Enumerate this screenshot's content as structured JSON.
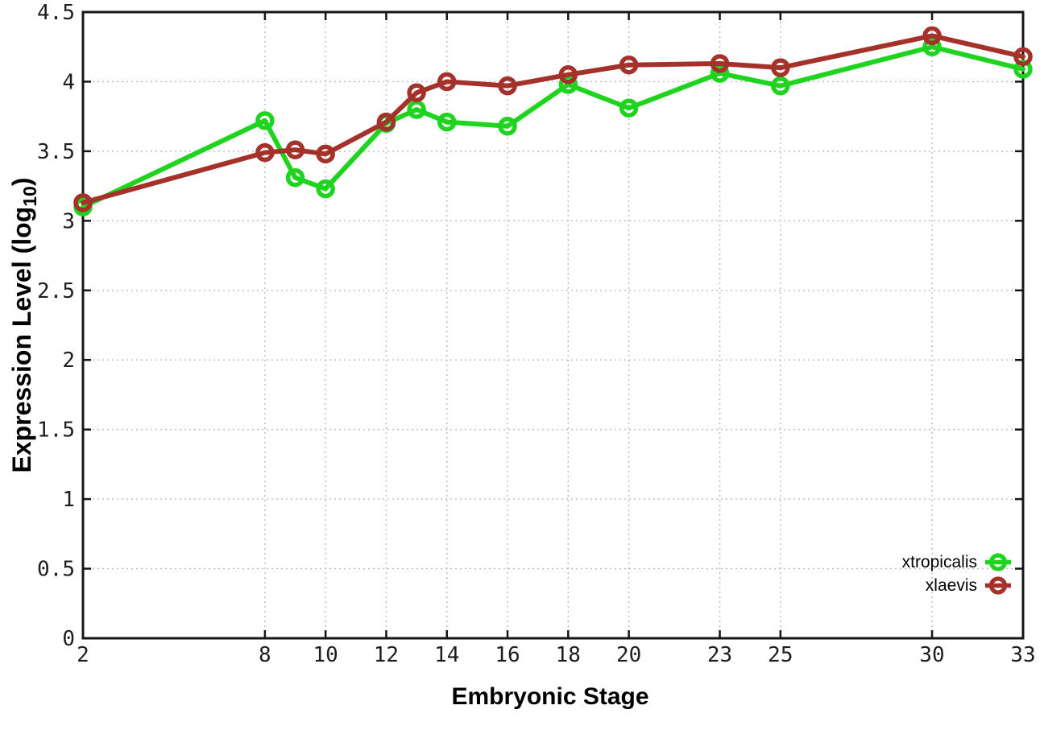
{
  "chart_data": {
    "type": "line",
    "title": "",
    "xlabel": "Embryonic Stage",
    "ylabel": "Expression Level (log10)",
    "ylabel_parts": {
      "main": "Expression Level (log",
      "sub": "10",
      "close": ")"
    },
    "xlim": [
      2,
      33
    ],
    "ylim": [
      0,
      4.5
    ],
    "x_ticks": [
      2,
      8,
      10,
      12,
      14,
      16,
      18,
      20,
      23,
      25,
      30,
      33
    ],
    "x_tick_labels": [
      "2",
      "8",
      "10",
      "12",
      "14",
      "16",
      "18",
      "20",
      "23",
      "25",
      "30",
      "33"
    ],
    "y_ticks": [
      0,
      0.5,
      1,
      1.5,
      2,
      2.5,
      3,
      3.5,
      4,
      4.5
    ],
    "y_tick_labels": [
      "0",
      "0.5",
      "1",
      "1.5",
      "2",
      "2.5",
      "3",
      "3.5",
      "4",
      "4.5"
    ],
    "grid": true,
    "legend_position": "bottom-right",
    "x": [
      2,
      8,
      9,
      10,
      12,
      13,
      14,
      16,
      18,
      20,
      23,
      25,
      30,
      33
    ],
    "series": [
      {
        "name": "xtropicalis",
        "color": "#1fd41f",
        "marker": "open-circle",
        "values": [
          3.1,
          3.72,
          3.31,
          3.23,
          3.7,
          3.8,
          3.71,
          3.68,
          3.98,
          3.81,
          4.06,
          3.97,
          4.25,
          4.09
        ]
      },
      {
        "name": "xlaevis",
        "color": "#a5312b",
        "marker": "open-circle",
        "values": [
          3.13,
          3.49,
          3.51,
          3.48,
          3.71,
          3.92,
          4.0,
          3.97,
          4.05,
          4.12,
          4.13,
          4.1,
          4.33,
          4.18
        ]
      }
    ]
  }
}
